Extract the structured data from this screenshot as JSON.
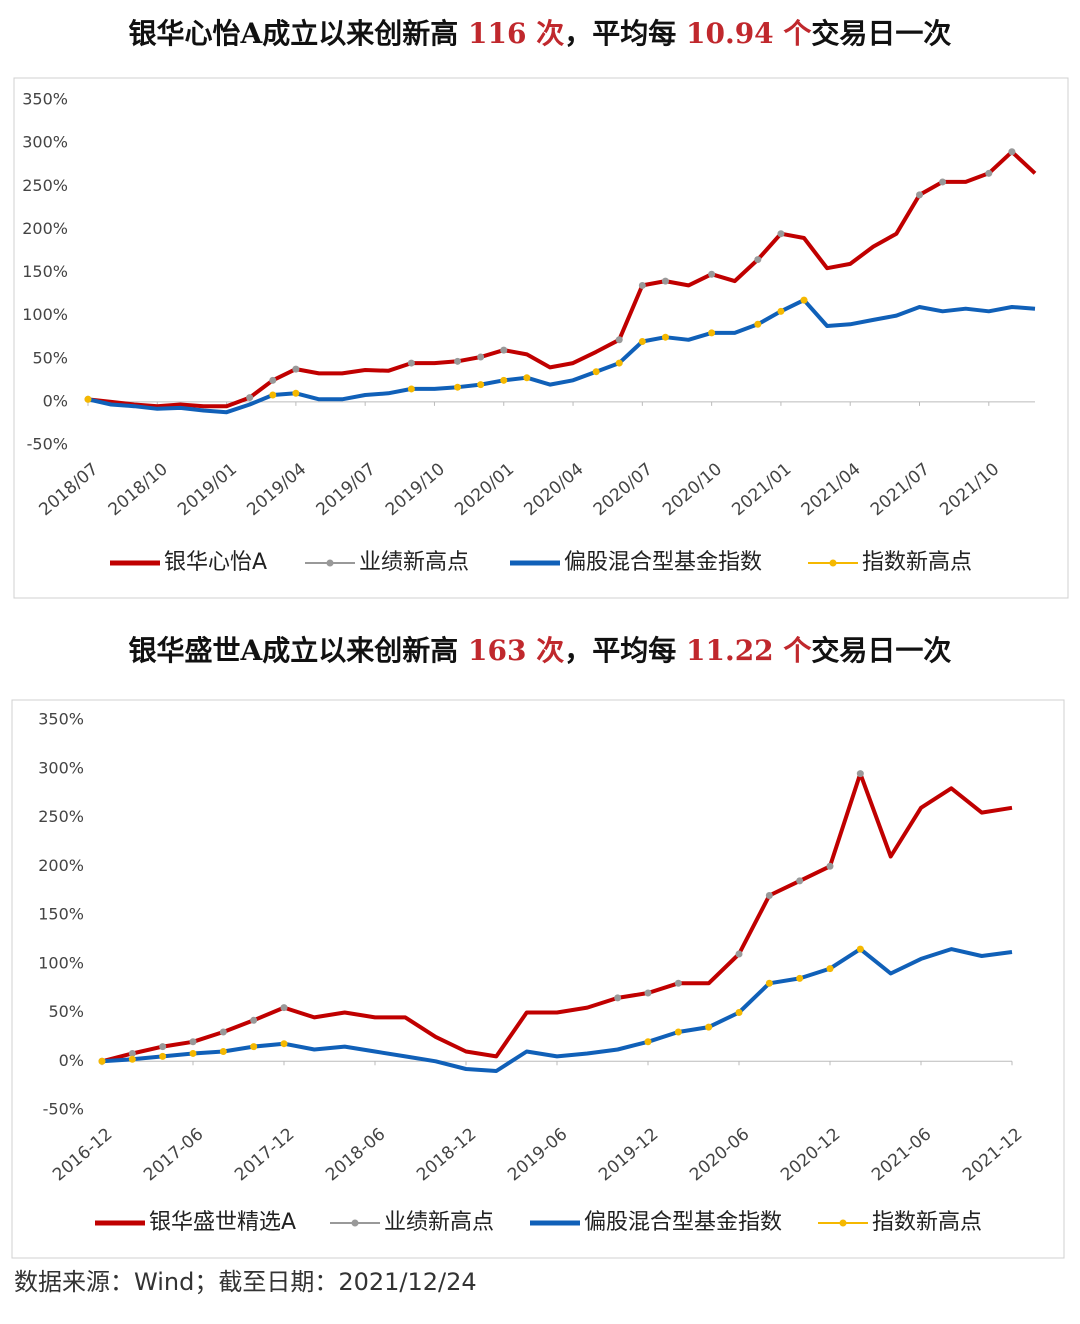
{
  "chart_data": [
    {
      "type": "line",
      "title": [
        {
          "text": "银华心怡A成立以来创新高 ",
          "color": "#111111"
        },
        {
          "text": "116 次",
          "color": "#c0282d"
        },
        {
          "text": "，平均每 ",
          "color": "#111111"
        },
        {
          "text": "10.94 个",
          "color": "#c0282d"
        },
        {
          "text": "交易日一次",
          "color": "#111111"
        }
      ],
      "x": [
        "2018/07",
        "2018/08",
        "2018/09",
        "2018/10",
        "2018/11",
        "2018/12",
        "2019/01",
        "2019/02",
        "2019/03",
        "2019/04",
        "2019/05",
        "2019/06",
        "2019/07",
        "2019/08",
        "2019/09",
        "2019/10",
        "2019/11",
        "2019/12",
        "2020/01",
        "2020/02",
        "2020/03",
        "2020/04",
        "2020/05",
        "2020/06",
        "2020/07",
        "2020/08",
        "2020/09",
        "2020/10",
        "2020/11",
        "2020/12",
        "2021/01",
        "2021/02",
        "2021/03",
        "2021/04",
        "2021/05",
        "2021/06",
        "2021/07",
        "2021/08",
        "2021/09",
        "2021/10",
        "2021/11",
        "2021/12"
      ],
      "xticks": [
        "2018/07",
        "2018/10",
        "2019/01",
        "2019/04",
        "2019/07",
        "2019/10",
        "2020/01",
        "2020/04",
        "2020/07",
        "2020/10",
        "2021/01",
        "2021/04",
        "2021/07",
        "2021/10"
      ],
      "ylim": [
        -50,
        350
      ],
      "yticks": [
        {
          "value": -50,
          "label": "-50%"
        },
        {
          "value": 0,
          "label": "0%"
        },
        {
          "value": 50,
          "label": "50%"
        },
        {
          "value": 100,
          "label": "100%"
        },
        {
          "value": 150,
          "label": "150%"
        },
        {
          "value": 200,
          "label": "200%"
        },
        {
          "value": 250,
          "label": "250%"
        },
        {
          "value": 300,
          "label": "300%"
        },
        {
          "value": 350,
          "label": "350%"
        }
      ],
      "series": [
        {
          "name": "银华心怡A",
          "color": "#c00000",
          "style": "line",
          "values": [
            3,
            0,
            -3,
            -5,
            -3,
            -5,
            -5,
            5,
            25,
            38,
            33,
            33,
            37,
            36,
            45,
            45,
            47,
            52,
            60,
            55,
            40,
            45,
            58,
            72,
            135,
            140,
            135,
            148,
            140,
            165,
            195,
            190,
            155,
            160,
            180,
            195,
            240,
            255,
            255,
            265,
            290,
            265
          ]
        },
        {
          "name": "业绩新高点",
          "color": "#999999",
          "style": "markers",
          "values": [
            3,
            null,
            null,
            null,
            null,
            null,
            null,
            5,
            25,
            38,
            null,
            null,
            null,
            null,
            45,
            null,
            47,
            52,
            60,
            null,
            null,
            null,
            null,
            72,
            135,
            140,
            null,
            148,
            null,
            165,
            195,
            null,
            null,
            null,
            null,
            null,
            240,
            255,
            null,
            265,
            290,
            null
          ]
        },
        {
          "name": "偏股混合型基金指数",
          "color": "#1060b8",
          "style": "line",
          "values": [
            3,
            -3,
            -5,
            -8,
            -7,
            -10,
            -12,
            -3,
            8,
            10,
            3,
            3,
            8,
            10,
            15,
            15,
            17,
            20,
            25,
            28,
            20,
            25,
            35,
            45,
            70,
            75,
            72,
            80,
            80,
            90,
            105,
            118,
            88,
            90,
            95,
            100,
            110,
            105,
            108,
            105,
            110,
            108
          ]
        },
        {
          "name": "指数新高点",
          "color": "#f5b800",
          "style": "markers",
          "values": [
            3,
            null,
            null,
            null,
            null,
            null,
            null,
            null,
            8,
            10,
            null,
            null,
            null,
            null,
            15,
            null,
            17,
            20,
            25,
            28,
            null,
            null,
            35,
            45,
            70,
            75,
            null,
            80,
            null,
            90,
            105,
            118,
            null,
            null,
            null,
            null,
            null,
            null,
            null,
            null,
            null,
            null
          ]
        }
      ]
    },
    {
      "type": "line",
      "title": [
        {
          "text": "银华盛世A成立以来创新高 ",
          "color": "#111111"
        },
        {
          "text": "163 次",
          "color": "#c0282d"
        },
        {
          "text": "，平均每 ",
          "color": "#111111"
        },
        {
          "text": "11.22 个",
          "color": "#c0282d"
        },
        {
          "text": "交易日一次",
          "color": "#111111"
        }
      ],
      "x": [
        "2016-12",
        "2017-02",
        "2017-04",
        "2017-06",
        "2017-08",
        "2017-10",
        "2017-12",
        "2018-02",
        "2018-04",
        "2018-06",
        "2018-08",
        "2018-10",
        "2018-12",
        "2019-02",
        "2019-04",
        "2019-06",
        "2019-08",
        "2019-10",
        "2019-12",
        "2020-02",
        "2020-04",
        "2020-06",
        "2020-08",
        "2020-10",
        "2020-12",
        "2021-02",
        "2021-04",
        "2021-06",
        "2021-08",
        "2021-10",
        "2021-12"
      ],
      "xticks": [
        "2016-12",
        "2017-06",
        "2017-12",
        "2018-06",
        "2018-12",
        "2019-06",
        "2019-12",
        "2020-06",
        "2020-12",
        "2021-06",
        "2021-12"
      ],
      "ylim": [
        -50,
        350
      ],
      "yticks": [
        {
          "value": -50,
          "label": "-50%"
        },
        {
          "value": 0,
          "label": "0%"
        },
        {
          "value": 50,
          "label": "50%"
        },
        {
          "value": 100,
          "label": "100%"
        },
        {
          "value": 150,
          "label": "150%"
        },
        {
          "value": 200,
          "label": "200%"
        },
        {
          "value": 250,
          "label": "250%"
        },
        {
          "value": 300,
          "label": "300%"
        },
        {
          "value": 350,
          "label": "350%"
        }
      ],
      "series": [
        {
          "name": "银华盛世精选A",
          "color": "#c00000",
          "style": "line",
          "values": [
            0,
            8,
            15,
            20,
            30,
            42,
            55,
            45,
            50,
            45,
            45,
            25,
            10,
            5,
            50,
            50,
            55,
            65,
            70,
            80,
            80,
            110,
            170,
            185,
            200,
            295,
            210,
            260,
            280,
            255,
            260
          ]
        },
        {
          "name": "业绩新高点",
          "color": "#999999",
          "style": "markers",
          "values": [
            0,
            8,
            15,
            20,
            30,
            42,
            55,
            null,
            null,
            null,
            null,
            null,
            null,
            null,
            null,
            null,
            null,
            65,
            70,
            80,
            null,
            110,
            170,
            185,
            200,
            295,
            null,
            null,
            null,
            null,
            null
          ]
        },
        {
          "name": "偏股混合型基金指数",
          "color": "#1060b8",
          "style": "line",
          "values": [
            0,
            2,
            5,
            8,
            10,
            15,
            18,
            12,
            15,
            10,
            5,
            0,
            -8,
            -10,
            10,
            5,
            8,
            12,
            20,
            30,
            35,
            50,
            80,
            85,
            95,
            115,
            90,
            105,
            115,
            108,
            112
          ]
        },
        {
          "name": "指数新高点",
          "color": "#f5b800",
          "style": "markers",
          "values": [
            0,
            2,
            5,
            8,
            10,
            15,
            18,
            null,
            null,
            null,
            null,
            null,
            null,
            null,
            null,
            null,
            null,
            null,
            20,
            30,
            35,
            50,
            80,
            85,
            95,
            115,
            null,
            null,
            null,
            null,
            null
          ]
        }
      ]
    }
  ],
  "source": "数据来源：Wind；截至日期：2021/12/24"
}
